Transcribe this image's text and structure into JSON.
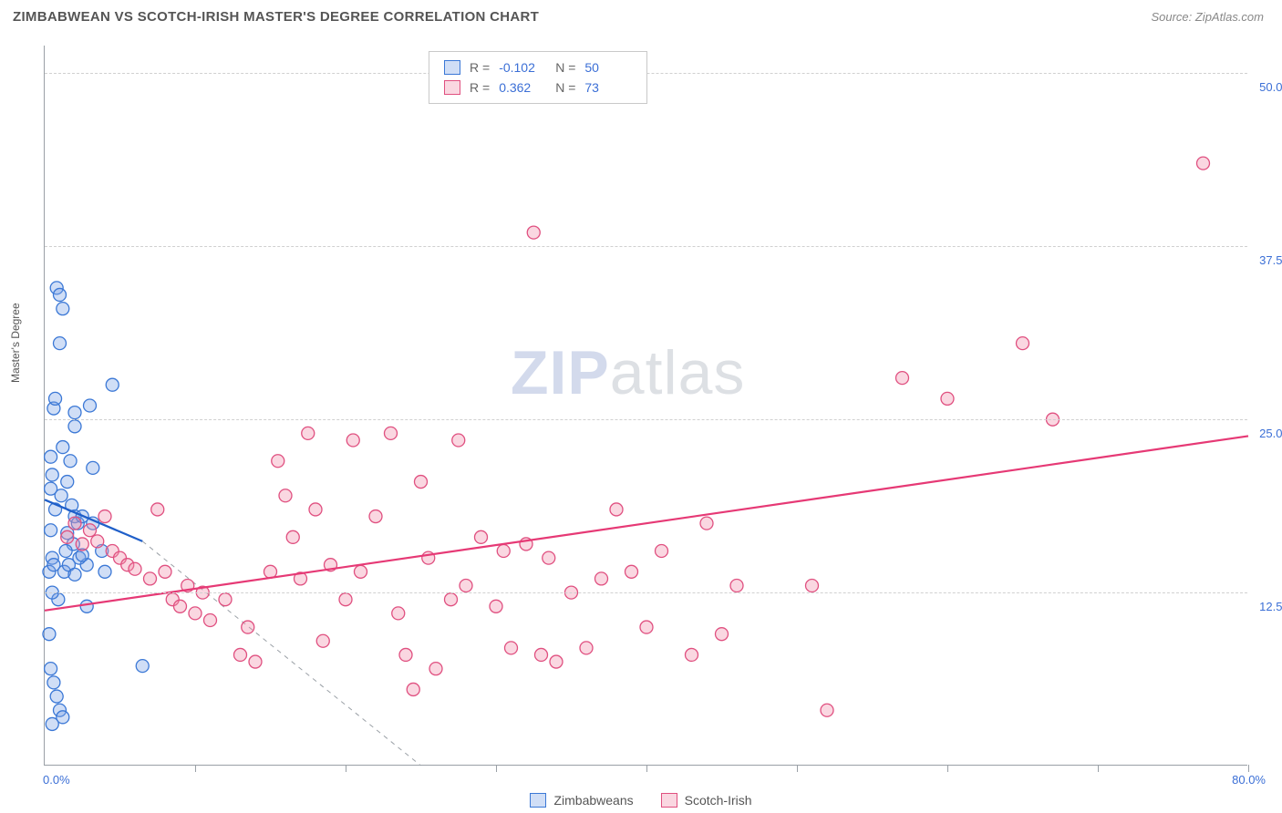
{
  "header": {
    "title": "ZIMBABWEAN VS SCOTCH-IRISH MASTER'S DEGREE CORRELATION CHART",
    "source_prefix": "Source: ",
    "source": "ZipAtlas.com"
  },
  "watermark": {
    "left": "ZIP",
    "right": "atlas"
  },
  "chart": {
    "type": "scatter",
    "y_axis_title": "Master's Degree",
    "xlim": [
      0,
      80
    ],
    "ylim": [
      0,
      52
    ],
    "y_ticks": [
      12.5,
      25.0,
      37.5,
      50.0
    ],
    "y_tick_labels": [
      "12.5%",
      "25.0%",
      "37.5%",
      "50.0%"
    ],
    "x_tick_positions": [
      0,
      10,
      20,
      30,
      40,
      50,
      60,
      70,
      80
    ],
    "x_start_label": "0.0%",
    "x_end_label": "80.0%",
    "grid_color": "#d0d0d0",
    "axis_color": "#9aa0a6",
    "background_color": "#ffffff",
    "marker_radius": 7,
    "marker_stroke_width": 1.3,
    "line_width": 2.2,
    "label_color": "#3b6fd6",
    "series": [
      {
        "name": "Zimbabweans",
        "fill": "rgba(120,160,230,0.35)",
        "stroke": "#3b78d6",
        "line_color": "#1f5fc9",
        "R": "-0.102",
        "N": "50",
        "trend": {
          "x1": 0,
          "y1": 19.2,
          "x2": 6.5,
          "y2": 16.2
        },
        "trend_ext": {
          "x1": 6.5,
          "y1": 16.2,
          "x2": 25,
          "y2": 0
        },
        "points": [
          [
            0.3,
            14.0
          ],
          [
            0.4,
            17.0
          ],
          [
            0.4,
            22.3
          ],
          [
            0.5,
            15.0
          ],
          [
            0.5,
            21.0
          ],
          [
            0.6,
            25.8
          ],
          [
            0.7,
            18.5
          ],
          [
            0.7,
            26.5
          ],
          [
            0.8,
            34.5
          ],
          [
            1.0,
            34.0
          ],
          [
            1.2,
            33.0
          ],
          [
            1.0,
            30.5
          ],
          [
            0.9,
            12.0
          ],
          [
            0.5,
            12.5
          ],
          [
            0.6,
            14.5
          ],
          [
            1.1,
            19.5
          ],
          [
            1.5,
            16.8
          ],
          [
            1.8,
            18.8
          ],
          [
            1.9,
            16.0
          ],
          [
            2.0,
            18.0
          ],
          [
            2.0,
            25.5
          ],
          [
            2.0,
            24.5
          ],
          [
            2.2,
            17.5
          ],
          [
            2.5,
            18.0
          ],
          [
            2.8,
            14.5
          ],
          [
            3.2,
            17.5
          ],
          [
            3.0,
            26.0
          ],
          [
            4.5,
            27.5
          ],
          [
            3.2,
            21.5
          ],
          [
            0.3,
            9.5
          ],
          [
            0.4,
            7.0
          ],
          [
            0.6,
            6.0
          ],
          [
            0.8,
            5.0
          ],
          [
            1.0,
            4.0
          ],
          [
            1.2,
            3.5
          ],
          [
            0.5,
            3.0
          ],
          [
            1.3,
            14.0
          ],
          [
            1.4,
            15.5
          ],
          [
            1.6,
            14.5
          ],
          [
            2.0,
            13.8
          ],
          [
            2.3,
            15.0
          ],
          [
            2.5,
            15.2
          ],
          [
            1.5,
            20.5
          ],
          [
            1.7,
            22.0
          ],
          [
            1.2,
            23.0
          ],
          [
            0.4,
            20.0
          ],
          [
            3.8,
            15.5
          ],
          [
            4.0,
            14.0
          ],
          [
            6.5,
            7.2
          ],
          [
            2.8,
            11.5
          ]
        ]
      },
      {
        "name": "Scotch-Irish",
        "fill": "rgba(240,140,170,0.35)",
        "stroke": "#e05080",
        "line_color": "#e63975",
        "R": "0.362",
        "N": "73",
        "trend": {
          "x1": 0,
          "y1": 11.2,
          "x2": 80,
          "y2": 23.8
        },
        "points": [
          [
            1.5,
            16.5
          ],
          [
            2.0,
            17.5
          ],
          [
            2.5,
            16.0
          ],
          [
            3.0,
            17.0
          ],
          [
            3.5,
            16.2
          ],
          [
            4.0,
            18.0
          ],
          [
            4.5,
            15.5
          ],
          [
            5.0,
            15.0
          ],
          [
            5.5,
            14.5
          ],
          [
            6.0,
            14.2
          ],
          [
            7.0,
            13.5
          ],
          [
            7.5,
            18.5
          ],
          [
            8.0,
            14.0
          ],
          [
            8.5,
            12.0
          ],
          [
            9.0,
            11.5
          ],
          [
            9.5,
            13.0
          ],
          [
            10.0,
            11.0
          ],
          [
            10.5,
            12.5
          ],
          [
            11.0,
            10.5
          ],
          [
            12.0,
            12.0
          ],
          [
            13.0,
            8.0
          ],
          [
            13.5,
            10.0
          ],
          [
            14.0,
            7.5
          ],
          [
            15.0,
            14.0
          ],
          [
            15.5,
            22.0
          ],
          [
            16.0,
            19.5
          ],
          [
            16.5,
            16.5
          ],
          [
            17.0,
            13.5
          ],
          [
            17.5,
            24.0
          ],
          [
            18.0,
            18.5
          ],
          [
            18.5,
            9.0
          ],
          [
            19.0,
            14.5
          ],
          [
            20.0,
            12.0
          ],
          [
            20.5,
            23.5
          ],
          [
            21.0,
            14.0
          ],
          [
            22.0,
            18.0
          ],
          [
            23.0,
            24.0
          ],
          [
            23.5,
            11.0
          ],
          [
            24.0,
            8.0
          ],
          [
            24.5,
            5.5
          ],
          [
            25.0,
            20.5
          ],
          [
            25.5,
            15.0
          ],
          [
            26.0,
            7.0
          ],
          [
            27.0,
            12.0
          ],
          [
            27.5,
            23.5
          ],
          [
            28.0,
            13.0
          ],
          [
            29.0,
            16.5
          ],
          [
            30.0,
            11.5
          ],
          [
            30.5,
            15.5
          ],
          [
            31.0,
            8.5
          ],
          [
            32.0,
            16.0
          ],
          [
            32.5,
            38.5
          ],
          [
            33.0,
            8.0
          ],
          [
            33.5,
            15.0
          ],
          [
            34.0,
            7.5
          ],
          [
            35.0,
            12.5
          ],
          [
            36.0,
            8.5
          ],
          [
            37.0,
            13.5
          ],
          [
            38.0,
            18.5
          ],
          [
            39.0,
            14.0
          ],
          [
            40.0,
            10.0
          ],
          [
            41.0,
            15.5
          ],
          [
            43.0,
            8.0
          ],
          [
            44.0,
            17.5
          ],
          [
            45.0,
            9.5
          ],
          [
            46.0,
            13.0
          ],
          [
            51.0,
            13.0
          ],
          [
            52.0,
            4.0
          ],
          [
            57.0,
            28.0
          ],
          [
            60.0,
            26.5
          ],
          [
            65.0,
            30.5
          ],
          [
            67.0,
            25.0
          ],
          [
            77.0,
            43.5
          ]
        ]
      }
    ],
    "legend": {
      "items": [
        "Zimbabweans",
        "Scotch-Irish"
      ]
    }
  }
}
